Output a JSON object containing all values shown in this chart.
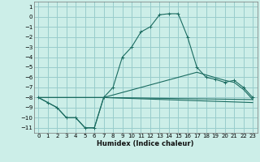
{
  "title": "",
  "xlabel": "Humidex (Indice chaleur)",
  "bg_color": "#cceee8",
  "grid_color": "#99cccc",
  "line_color": "#1a6b60",
  "xlim": [
    -0.5,
    23.5
  ],
  "ylim": [
    -11.5,
    1.5
  ],
  "xticks": [
    0,
    1,
    2,
    3,
    4,
    5,
    6,
    7,
    8,
    9,
    10,
    11,
    12,
    13,
    14,
    15,
    16,
    17,
    18,
    19,
    20,
    21,
    22,
    23
  ],
  "yticks": [
    1,
    0,
    -1,
    -2,
    -3,
    -4,
    -5,
    -6,
    -7,
    -8,
    -9,
    -10,
    -11
  ],
  "lines": [
    {
      "x": [
        0,
        1,
        2,
        3,
        4,
        5,
        6,
        7,
        8,
        9,
        10,
        11,
        12,
        13,
        14,
        15,
        16,
        17,
        18,
        19,
        20,
        21,
        22,
        23
      ],
      "y": [
        -8,
        -8.5,
        -9,
        -10,
        -10,
        -11,
        -11,
        -8,
        -7,
        -4,
        -3,
        -1.5,
        -1,
        0.2,
        0.3,
        0.3,
        -2,
        -5,
        -6,
        -6.2,
        -6.5,
        -6.3,
        -7,
        -8
      ],
      "marker": "+"
    },
    {
      "x": [
        0,
        2,
        3,
        4,
        5,
        6,
        7,
        23
      ],
      "y": [
        -8,
        -9,
        -10,
        -10,
        -11,
        -11,
        -8,
        -8.2
      ],
      "marker": null
    },
    {
      "x": [
        0,
        7,
        23
      ],
      "y": [
        -8,
        -8,
        -8.5
      ],
      "marker": null
    },
    {
      "x": [
        0,
        7,
        17,
        20,
        21,
        22,
        23
      ],
      "y": [
        -8,
        -8,
        -5.5,
        -6.3,
        -6.5,
        -7.2,
        -8.2
      ],
      "marker": null
    }
  ]
}
